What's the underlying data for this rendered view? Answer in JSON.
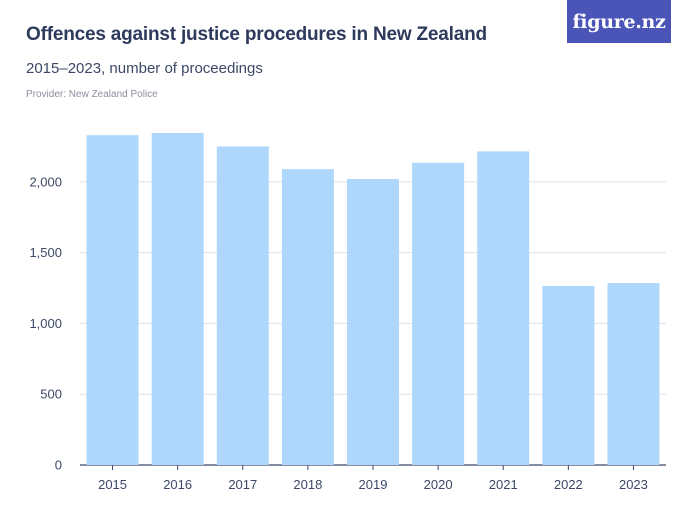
{
  "header": {
    "title": "Offences against justice procedures in New Zealand",
    "subtitle": "2015–2023, number of proceedings",
    "provider": "Provider: New Zealand Police"
  },
  "logo": {
    "text": "figure.nz"
  },
  "colors": {
    "bar": "#aed7fb",
    "grid": "#dde1e7",
    "axis": "#3c4866",
    "logo_bg": "#4b55b8"
  },
  "chart_data": {
    "type": "bar",
    "categories": [
      "2015",
      "2016",
      "2017",
      "2018",
      "2019",
      "2020",
      "2021",
      "2022",
      "2023"
    ],
    "values": [
      2330,
      2345,
      2250,
      2090,
      2020,
      2135,
      2215,
      1265,
      1285
    ],
    "yticks": [
      0,
      500,
      1000,
      1500,
      2000
    ],
    "ytick_labels": [
      "0",
      "500",
      "1,000",
      "1,500",
      "2,000"
    ],
    "ylim": [
      0,
      2450
    ],
    "grid": true,
    "legend": "none"
  }
}
